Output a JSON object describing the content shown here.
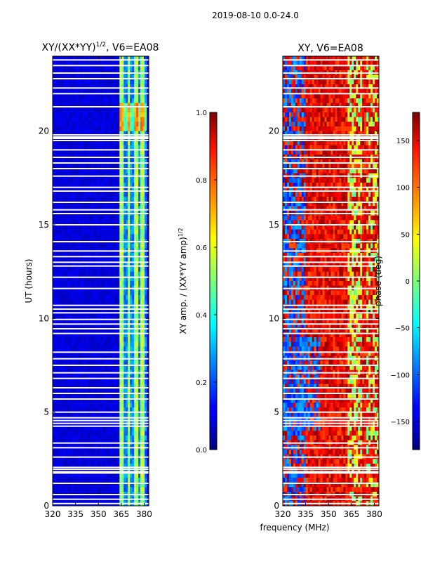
{
  "figure": {
    "suptitle": "2019-08-10 0.0-24.0",
    "shared_xlabel": "frequency (MHz)"
  },
  "chart_data": [
    {
      "type": "heatmap",
      "title": "XY/(XX*YY)",
      "title_sup": "1/2",
      "title_suffix": ", V6=EA08",
      "ylabel": "UT (hours)",
      "xlim": [
        320,
        383
      ],
      "ylim": [
        0,
        24
      ],
      "xticks": [
        "320",
        "335",
        "350",
        "365",
        "380"
      ],
      "xtick_values": [
        320,
        335,
        350,
        365,
        380
      ],
      "yticks": [
        "0",
        "5",
        "10",
        "15",
        "20"
      ],
      "ytick_values": [
        0,
        5,
        10,
        15,
        20
      ],
      "colorbar": {
        "label": "XY amp. / (XX*YY amp)",
        "label_sup": "1/2",
        "range": [
          0.0,
          1.0
        ],
        "ticks": [
          "0.0",
          "0.2",
          "0.4",
          "0.6",
          "0.8",
          "1.0"
        ],
        "tick_values": [
          0.0,
          0.2,
          0.4,
          0.6,
          0.8,
          1.0
        ]
      },
      "colormap": "jet",
      "background_value": 0.06,
      "bright_band_mhz": [
        364,
        382
      ],
      "bright_value": 0.35
    },
    {
      "type": "heatmap",
      "title": "XY, V6=EA08",
      "ylabel": "",
      "xlim": [
        320,
        383
      ],
      "ylim": [
        0,
        24
      ],
      "xticks": [
        "320",
        "335",
        "350",
        "365",
        "380"
      ],
      "xtick_values": [
        320,
        335,
        350,
        365,
        380
      ],
      "yticks": [
        "0",
        "5",
        "10",
        "15",
        "20"
      ],
      "ytick_values": [
        0,
        5,
        10,
        15,
        20
      ],
      "colorbar": {
        "label": "phase (deg)",
        "range": [
          -180,
          180
        ],
        "ticks": [
          "−150",
          "−100",
          "−50",
          "0",
          "50",
          "100",
          "150"
        ],
        "tick_values": [
          -150,
          -100,
          -50,
          0,
          50,
          100,
          150
        ]
      },
      "colormap": "jet",
      "typical_phase_deg": 140,
      "low_freq_phase_deg": -130,
      "high_freq_phase_deg": 20
    }
  ],
  "flagged_hours": [
    0.12,
    0.35,
    0.6,
    1.2,
    1.75,
    1.82,
    1.95,
    2.05,
    2.6,
    3.1,
    3.35,
    4.25,
    4.4,
    4.55,
    4.7,
    5.0,
    5.7,
    6.0,
    6.3,
    6.8,
    7.1,
    7.5,
    7.85,
    8.2,
    9.2,
    9.45,
    9.7,
    9.95,
    10.3,
    10.5,
    10.7,
    11.6,
    12.2,
    12.8,
    13.0,
    13.3,
    13.6,
    14.1,
    15.0,
    15.6,
    15.8,
    16.2,
    16.8,
    17.0,
    17.6,
    18.0,
    18.3,
    18.6,
    19.0,
    19.5,
    19.65,
    19.8,
    21.3,
    22.0,
    22.3,
    22.8,
    23.1,
    23.5,
    23.8
  ]
}
